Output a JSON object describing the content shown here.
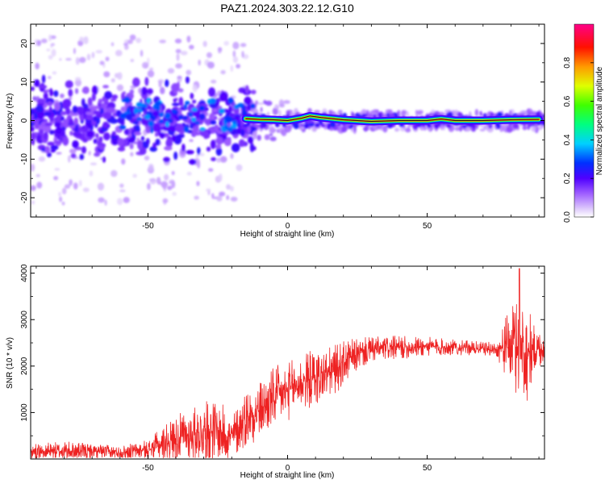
{
  "title": "PAZ1.2024.303.22.12.G10",
  "chart_data": [
    {
      "type": "heatmap",
      "xlabel": "Height of straight line (km)",
      "ylabel": "Frequency (Hz)",
      "xlim": [
        -92,
        92
      ],
      "ylim": [
        -25,
        25
      ],
      "xticks": [
        -50,
        0,
        50
      ],
      "yticks": [
        -20,
        -10,
        0,
        10,
        20
      ],
      "colorbar": {
        "label": "Normalized spectral amplitude",
        "range": [
          0,
          1
        ],
        "ticks": [
          "0.0",
          "0.2",
          "0.4",
          "0.6",
          "0.8"
        ],
        "colormap": [
          "#ffffff",
          "#c8a8f8",
          "#8800ff",
          "#0000ff",
          "#00ffff",
          "#00ff00",
          "#ffff00",
          "#ff8800",
          "#ff0000",
          "#ff0088"
        ]
      },
      "ridge": {
        "description": "frequency ridge near 0 Hz",
        "points": [
          [
            -15,
            0.5
          ],
          [
            -10,
            0.3
          ],
          [
            -5,
            0.2
          ],
          [
            0,
            0
          ],
          [
            5,
            0.6
          ],
          [
            8,
            1.2
          ],
          [
            12,
            0.8
          ],
          [
            20,
            0.2
          ],
          [
            30,
            -0.2
          ],
          [
            40,
            0
          ],
          [
            50,
            0
          ],
          [
            55,
            0.4
          ],
          [
            60,
            0
          ],
          [
            70,
            0
          ],
          [
            80,
            0.2
          ],
          [
            90,
            0.3
          ]
        ]
      },
      "noise_region": [
        -92,
        -15
      ]
    },
    {
      "type": "line",
      "xlabel": "Height of straight line (km)",
      "ylabel": "SNR (10 * v/v)",
      "xlim": [
        -92,
        92
      ],
      "ylim": [
        0,
        4150
      ],
      "xticks": [
        -50,
        0,
        50
      ],
      "yticks": [
        1000,
        2000,
        3000,
        4000
      ],
      "color": "#ee2222",
      "envelope": {
        "x": [
          -92,
          -80,
          -70,
          -60,
          -50,
          -45,
          -40,
          -35,
          -30,
          -25,
          -20,
          -15,
          -10,
          -5,
          0,
          5,
          10,
          15,
          20,
          25,
          30,
          40,
          50,
          60,
          70,
          75,
          80,
          85,
          88,
          92
        ],
        "mean": [
          150,
          170,
          160,
          140,
          200,
          330,
          450,
          520,
          600,
          600,
          450,
          900,
          1050,
          1300,
          1450,
          1650,
          1750,
          1850,
          2050,
          2250,
          2350,
          2400,
          2420,
          2400,
          2380,
          2350,
          2450,
          2300,
          2350,
          2400
        ],
        "spread": [
          120,
          150,
          120,
          100,
          150,
          250,
          350,
          400,
          450,
          500,
          350,
          450,
          450,
          500,
          450,
          450,
          450,
          400,
          350,
          250,
          200,
          180,
          150,
          120,
          100,
          120,
          650,
          900,
          400,
          250
        ]
      },
      "peak": {
        "x": 83,
        "y": 4100
      }
    }
  ]
}
